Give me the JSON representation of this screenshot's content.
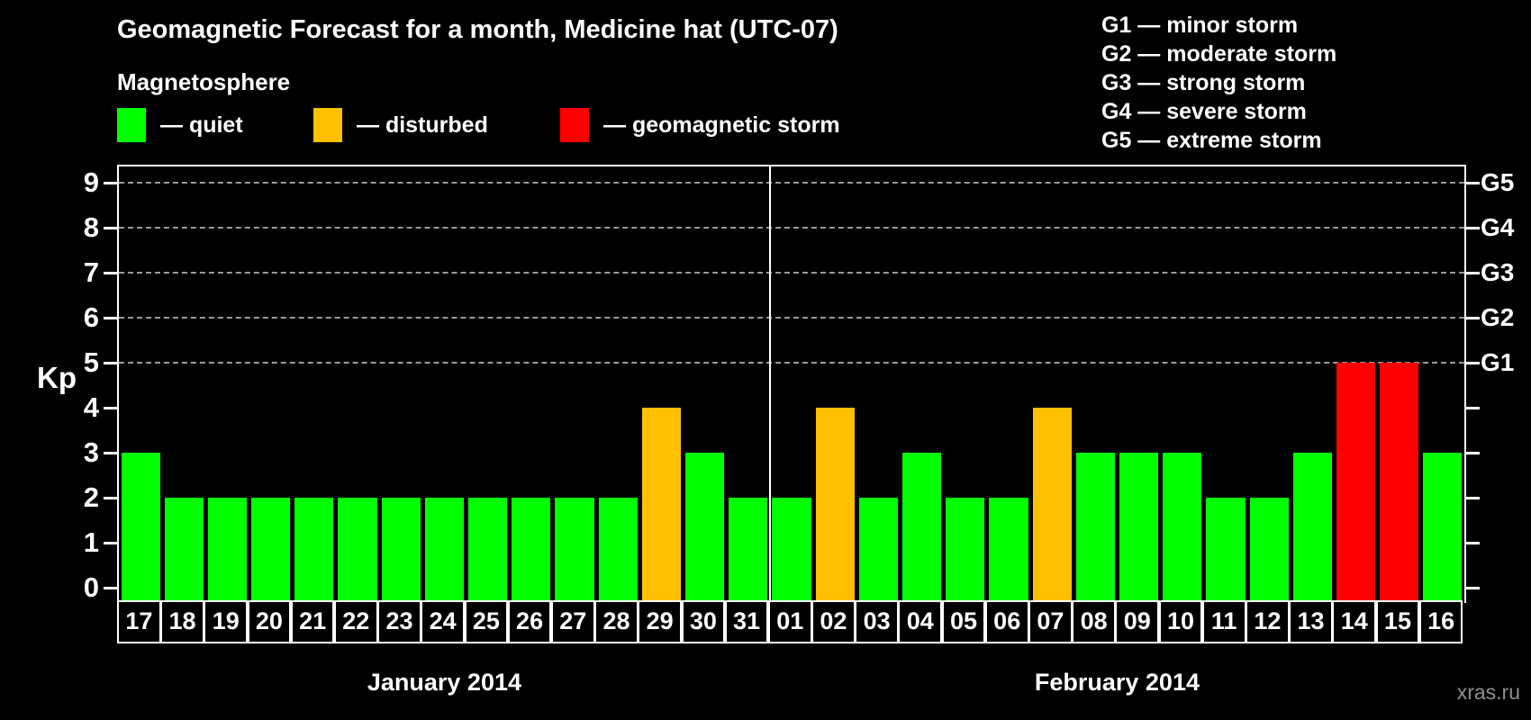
{
  "title": "Geomagnetic Forecast for a month, Medicine hat (UTC-07)",
  "watermark": "xras.ru",
  "legend": {
    "heading": "Magnetosphere",
    "items": [
      {
        "name": "quiet",
        "label": "— quiet",
        "color": "#00ff00"
      },
      {
        "name": "disturbed",
        "label": "— disturbed",
        "color": "#ffc000"
      },
      {
        "name": "geomagnetic-storm",
        "label": "— geomagnetic storm",
        "color": "#ff0000"
      }
    ]
  },
  "storm_scale_legend": [
    "G1 — minor storm",
    "G2 — moderate storm",
    "G3 — strong storm",
    "G4 — severe storm",
    "G5 — extreme storm"
  ],
  "chart_data": {
    "type": "bar",
    "title": "Geomagnetic Forecast for a month, Medicine hat (UTC-07)",
    "ylabel": "Kp",
    "ylim": [
      0,
      9.4
    ],
    "yticks": [
      0,
      1,
      2,
      3,
      4,
      5,
      6,
      7,
      8,
      9
    ],
    "gridlines_at_kp": [
      5,
      6,
      7,
      8,
      9
    ],
    "grid": "dashed",
    "legend_position": "top",
    "right_axis": [
      {
        "kp": 5,
        "label": "G1"
      },
      {
        "kp": 6,
        "label": "G2"
      },
      {
        "kp": 7,
        "label": "G3"
      },
      {
        "kp": 8,
        "label": "G4"
      },
      {
        "kp": 9,
        "label": "G5"
      }
    ],
    "state_colors": {
      "quiet": "#00ff00",
      "disturbed": "#ffc000",
      "storm": "#ff0000"
    },
    "months": [
      {
        "label": "January 2014",
        "bars": [
          {
            "day": "17",
            "kp": 3,
            "state": "quiet"
          },
          {
            "day": "18",
            "kp": 2,
            "state": "quiet"
          },
          {
            "day": "19",
            "kp": 2,
            "state": "quiet"
          },
          {
            "day": "20",
            "kp": 2,
            "state": "quiet"
          },
          {
            "day": "21",
            "kp": 2,
            "state": "quiet"
          },
          {
            "day": "22",
            "kp": 2,
            "state": "quiet"
          },
          {
            "day": "23",
            "kp": 2,
            "state": "quiet"
          },
          {
            "day": "24",
            "kp": 2,
            "state": "quiet"
          },
          {
            "day": "25",
            "kp": 2,
            "state": "quiet"
          },
          {
            "day": "26",
            "kp": 2,
            "state": "quiet"
          },
          {
            "day": "27",
            "kp": 2,
            "state": "quiet"
          },
          {
            "day": "28",
            "kp": 2,
            "state": "quiet"
          },
          {
            "day": "29",
            "kp": 4,
            "state": "disturbed"
          },
          {
            "day": "30",
            "kp": 3,
            "state": "quiet"
          },
          {
            "day": "31",
            "kp": 2,
            "state": "quiet"
          }
        ]
      },
      {
        "label": "February 2014",
        "bars": [
          {
            "day": "01",
            "kp": 2,
            "state": "quiet"
          },
          {
            "day": "02",
            "kp": 4,
            "state": "disturbed"
          },
          {
            "day": "03",
            "kp": 2,
            "state": "quiet"
          },
          {
            "day": "04",
            "kp": 3,
            "state": "quiet"
          },
          {
            "day": "05",
            "kp": 2,
            "state": "quiet"
          },
          {
            "day": "06",
            "kp": 2,
            "state": "quiet"
          },
          {
            "day": "07",
            "kp": 4,
            "state": "disturbed"
          },
          {
            "day": "08",
            "kp": 3,
            "state": "quiet"
          },
          {
            "day": "09",
            "kp": 3,
            "state": "quiet"
          },
          {
            "day": "10",
            "kp": 3,
            "state": "quiet"
          },
          {
            "day": "11",
            "kp": 2,
            "state": "quiet"
          },
          {
            "day": "12",
            "kp": 2,
            "state": "quiet"
          },
          {
            "day": "13",
            "kp": 3,
            "state": "quiet"
          },
          {
            "day": "14",
            "kp": 5,
            "state": "storm"
          },
          {
            "day": "15",
            "kp": 5,
            "state": "storm"
          },
          {
            "day": "16",
            "kp": 3,
            "state": "quiet"
          }
        ]
      }
    ]
  }
}
